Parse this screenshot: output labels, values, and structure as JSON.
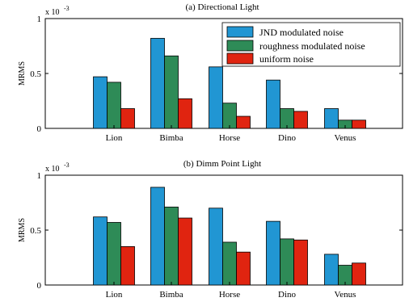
{
  "figure": {
    "legend": {
      "position": "top-right",
      "entries": [
        {
          "label": "JND modulated noise",
          "color": "#2196d3"
        },
        {
          "label": "roughness modulated noise",
          "color": "#2e8b57"
        },
        {
          "label": "uniform noise",
          "color": "#e02410"
        }
      ]
    }
  },
  "chart_data": [
    {
      "type": "bar",
      "title": "(a) Directional Light",
      "ylabel": "MRMS",
      "y_exponent_label": "x 10",
      "y_exponent": "-3",
      "ylim": [
        0,
        1
      ],
      "yticks": [
        "0",
        "0.5",
        "1"
      ],
      "grid": false,
      "categories": [
        "Lion",
        "Bimba",
        "Horse",
        "Dino",
        "Venus"
      ],
      "series": [
        {
          "name": "JND modulated noise",
          "color": "#2196d3",
          "values": [
            0.47,
            0.82,
            0.56,
            0.44,
            0.18
          ]
        },
        {
          "name": "roughness modulated noise",
          "color": "#2e8b57",
          "values": [
            0.42,
            0.66,
            0.23,
            0.18,
            0.075
          ]
        },
        {
          "name": "uniform noise",
          "color": "#e02410",
          "values": [
            0.18,
            0.27,
            0.11,
            0.155,
            0.075
          ]
        }
      ]
    },
    {
      "type": "bar",
      "title": "(b) Dimm Point Light",
      "ylabel": "MRMS",
      "y_exponent_label": "x 10",
      "y_exponent": "-3",
      "ylim": [
        0,
        1
      ],
      "yticks": [
        "0",
        "0.5",
        "1"
      ],
      "grid": false,
      "categories": [
        "Lion",
        "Bimba",
        "Horse",
        "Dino",
        "Venus"
      ],
      "series": [
        {
          "name": "JND modulated noise",
          "color": "#2196d3",
          "values": [
            0.62,
            0.89,
            0.7,
            0.58,
            0.28
          ]
        },
        {
          "name": "roughness modulated noise",
          "color": "#2e8b57",
          "values": [
            0.57,
            0.71,
            0.39,
            0.42,
            0.18
          ]
        },
        {
          "name": "uniform noise",
          "color": "#e02410",
          "values": [
            0.35,
            0.61,
            0.3,
            0.41,
            0.2
          ]
        }
      ]
    }
  ]
}
